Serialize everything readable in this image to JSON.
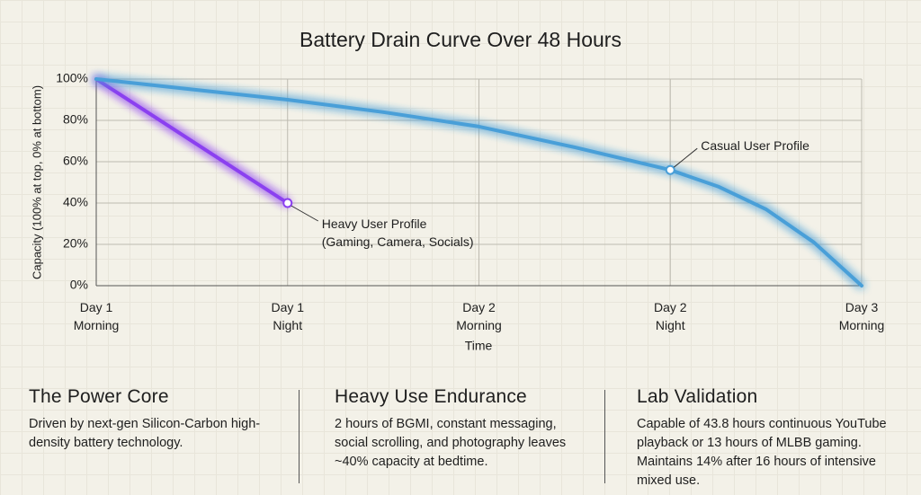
{
  "chart_data": {
    "type": "line",
    "title": "Battery Drain Curve Over 48 Hours",
    "xlabel": "Time",
    "ylabel": "Capacity (100% at top, 0% at bottom)",
    "xlim": [
      0,
      48
    ],
    "xticks": [
      {
        "value": 0,
        "label": "Day 1\nMorning"
      },
      {
        "value": 12,
        "label": "Day 1\nNight"
      },
      {
        "value": 24,
        "label": "Day 2\nMorning"
      },
      {
        "value": 36,
        "label": "Day 2\nNight"
      },
      {
        "value": 48,
        "label": "Day 3\nMorning"
      }
    ],
    "ylim": [
      0,
      100
    ],
    "yticks": [
      {
        "value": 0,
        "label": "0%"
      },
      {
        "value": 20,
        "label": "20%"
      },
      {
        "value": 40,
        "label": "40%"
      },
      {
        "value": 60,
        "label": "60%"
      },
      {
        "value": 80,
        "label": "80%"
      },
      {
        "value": 100,
        "label": "100%"
      }
    ],
    "grid": true,
    "series": [
      {
        "name": "Heavy User Profile\n(Gaming, Camera, Socials)",
        "color": "#8b3ff0",
        "x": [
          0,
          12
        ],
        "values": [
          100,
          40
        ],
        "label_x": 12
      },
      {
        "name": "Casual User Profile",
        "color": "#4a9fd8",
        "x": [
          0,
          6,
          12,
          18,
          24,
          30,
          36,
          39,
          42,
          45,
          48
        ],
        "values": [
          100,
          95,
          90,
          84,
          77,
          67,
          56,
          48,
          37,
          21,
          0
        ],
        "label_x": 36
      }
    ]
  },
  "panels": [
    {
      "title": "The Power Core",
      "text": "Driven by next-gen Silicon-Carbon high-density battery technology."
    },
    {
      "title": "Heavy Use Endurance",
      "text": "2 hours of BGMI, constant messaging, social scrolling, and photography leaves ~40% capacity at bedtime."
    },
    {
      "title": "Lab Validation",
      "text": "Capable of 43.8 hours continuous YouTube playback or 13 hours of MLBB gaming. Maintains 14% after 16 hours of intensive mixed use."
    }
  ]
}
